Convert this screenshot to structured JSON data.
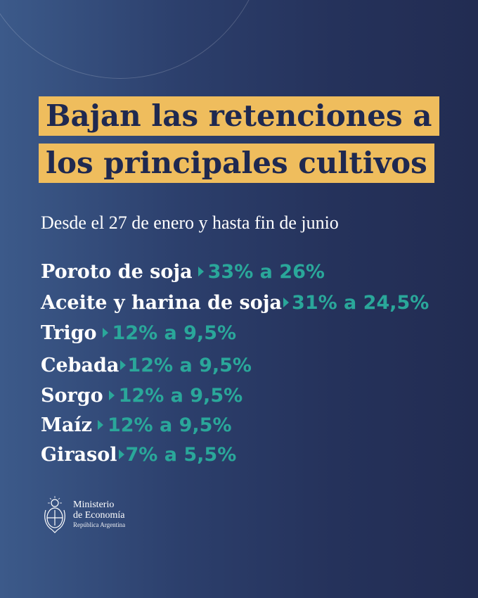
{
  "title": {
    "line1": "Bajan las retenciones a",
    "line2": "los principales cultivos"
  },
  "subtitle": "Desde el 27 de enero y hasta fin de junio",
  "crops": [
    {
      "name": "Poroto de soja",
      "rate": "33% a 26%"
    },
    {
      "name": "Aceite y harina de soja",
      "rate": "31% a 24,5%"
    },
    {
      "name": "Trigo",
      "rate": "12% a 9,5%"
    },
    {
      "name": "Cebada",
      "rate": "12% a 9,5%"
    },
    {
      "name": "Sorgo",
      "rate": "12% a 9,5%"
    },
    {
      "name": "Maíz",
      "rate": "12% a 9,5%"
    },
    {
      "name": "Girasol",
      "rate": "7% a 5,5%"
    }
  ],
  "footer": {
    "line1": "Ministerio",
    "line2": "de Economía",
    "line3": "República Argentina"
  },
  "colors": {
    "title_band": "#efbd5d",
    "rate_teal": "#2aa79a",
    "background_dark": "#222c52"
  }
}
